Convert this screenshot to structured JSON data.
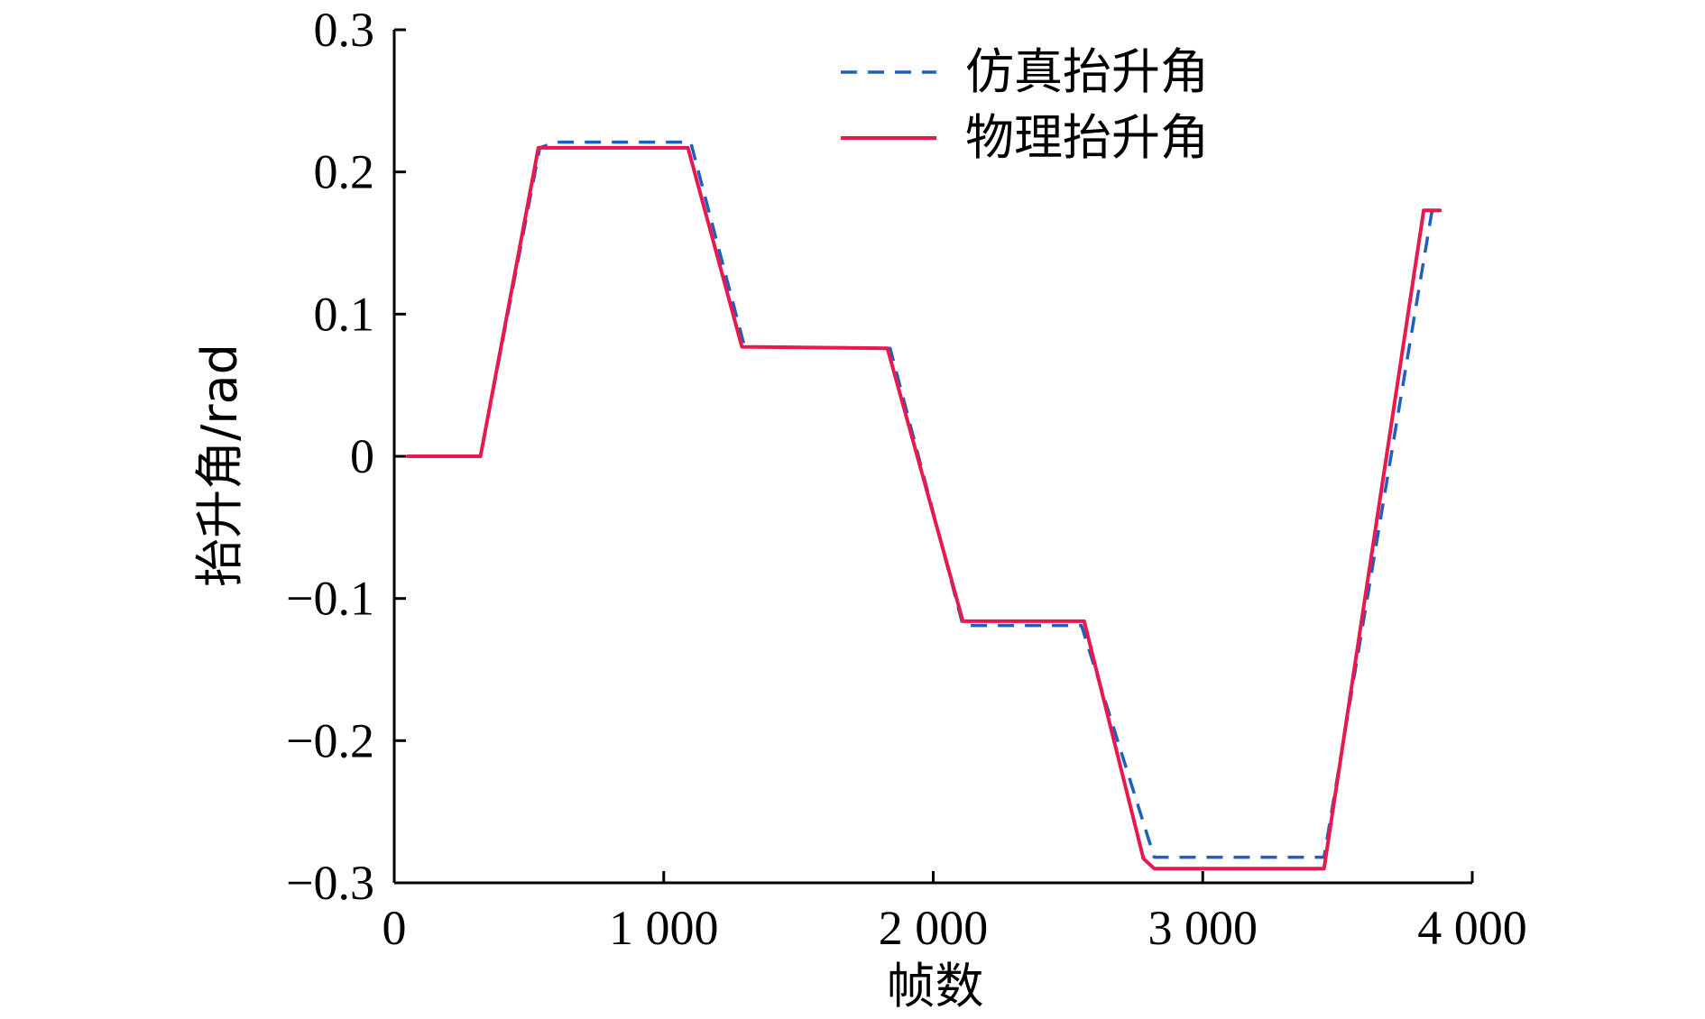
{
  "chart_data": {
    "type": "line",
    "title": "",
    "xlabel": "帧数",
    "ylabel": "抬升角/rad",
    "xlim": [
      0,
      4000
    ],
    "ylim": [
      -0.3,
      0.3
    ],
    "xticks": [
      0,
      1000,
      2000,
      3000,
      4000
    ],
    "xtick_labels": [
      "0",
      "1 000",
      "2 000",
      "3 000",
      "4 000"
    ],
    "yticks": [
      0.3,
      0.2,
      0.1,
      0,
      -0.1,
      -0.2,
      -0.3
    ],
    "ytick_labels": [
      "0.3",
      "0.2",
      "0.1",
      "0",
      "−0.1",
      "−0.2",
      "−0.3"
    ],
    "grid": false,
    "legend_position": "top-right",
    "series": [
      {
        "name": "仿真抬升角",
        "style": "dashed",
        "color": "#1f5fbf",
        "x": [
          50,
          320,
          540,
          600,
          1100,
          1300,
          1840,
          2110,
          2550,
          2820,
          3450,
          3850,
          3880
        ],
        "y": [
          0,
          0,
          0.217,
          0.221,
          0.221,
          0.077,
          0.076,
          -0.119,
          -0.119,
          -0.282,
          -0.282,
          0.172,
          0.172
        ]
      },
      {
        "name": "物理抬升角",
        "style": "solid",
        "color": "#e8194f",
        "x": [
          50,
          320,
          535,
          1090,
          1290,
          1830,
          2110,
          2560,
          2780,
          2820,
          3450,
          3820,
          3880
        ],
        "y": [
          0,
          0,
          0.217,
          0.217,
          0.077,
          0.076,
          -0.116,
          -0.116,
          -0.283,
          -0.29,
          -0.29,
          0.173,
          0.173
        ]
      }
    ]
  }
}
